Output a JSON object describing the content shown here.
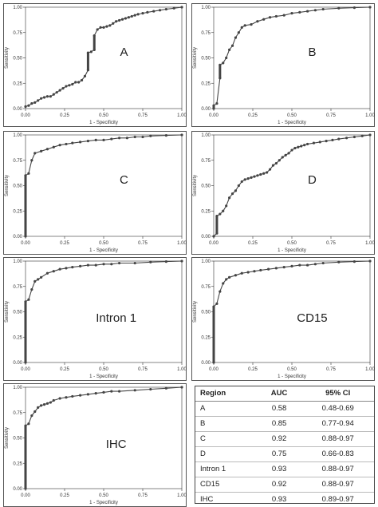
{
  "chart_data": [
    {
      "type": "line",
      "panel_label": "A",
      "xlabel": "1 - Specificity",
      "ylabel": "Sensitivity",
      "xlim": [
        0,
        1
      ],
      "ylim": [
        0,
        1
      ],
      "xticks": [
        "0.00",
        "0.25",
        "0.50",
        "0.75",
        "1.00"
      ],
      "yticks": [
        "0.00",
        "0.25",
        "0.50",
        "0.75",
        "1.00"
      ],
      "x": [
        0.0,
        0.02,
        0.04,
        0.06,
        0.08,
        0.1,
        0.12,
        0.14,
        0.16,
        0.18,
        0.2,
        0.22,
        0.24,
        0.26,
        0.28,
        0.3,
        0.32,
        0.34,
        0.36,
        0.38,
        0.4,
        0.4,
        0.42,
        0.44,
        0.44,
        0.46,
        0.48,
        0.5,
        0.52,
        0.54,
        0.56,
        0.58,
        0.6,
        0.62,
        0.64,
        0.66,
        0.68,
        0.7,
        0.72,
        0.75,
        0.78,
        0.82,
        0.86,
        0.9,
        0.95,
        1.0
      ],
      "y": [
        0.02,
        0.03,
        0.05,
        0.06,
        0.08,
        0.1,
        0.11,
        0.12,
        0.12,
        0.14,
        0.16,
        0.18,
        0.2,
        0.22,
        0.23,
        0.24,
        0.26,
        0.26,
        0.28,
        0.32,
        0.38,
        0.55,
        0.56,
        0.58,
        0.72,
        0.78,
        0.8,
        0.8,
        0.81,
        0.82,
        0.84,
        0.86,
        0.87,
        0.88,
        0.89,
        0.9,
        0.91,
        0.92,
        0.93,
        0.94,
        0.95,
        0.96,
        0.97,
        0.98,
        0.99,
        1.0
      ]
    },
    {
      "type": "line",
      "panel_label": "B",
      "xlabel": "1 - Specificity",
      "ylabel": "Sensitivity",
      "xlim": [
        0,
        1
      ],
      "ylim": [
        0,
        1
      ],
      "xticks": [
        "0.00",
        "0.25",
        "0.50",
        "0.75",
        "1.00"
      ],
      "yticks": [
        "0.00",
        "0.25",
        "0.50",
        "0.75",
        "1.00"
      ],
      "x": [
        0.0,
        0.0,
        0.02,
        0.04,
        0.04,
        0.06,
        0.08,
        0.1,
        0.12,
        0.14,
        0.16,
        0.18,
        0.2,
        0.24,
        0.28,
        0.32,
        0.36,
        0.4,
        0.45,
        0.5,
        0.55,
        0.6,
        0.65,
        0.7,
        0.8,
        0.9,
        1.0
      ],
      "y": [
        0.0,
        0.03,
        0.05,
        0.3,
        0.43,
        0.45,
        0.5,
        0.58,
        0.62,
        0.7,
        0.75,
        0.8,
        0.82,
        0.83,
        0.86,
        0.88,
        0.9,
        0.91,
        0.92,
        0.94,
        0.95,
        0.96,
        0.97,
        0.98,
        0.99,
        0.995,
        1.0
      ]
    },
    {
      "type": "line",
      "panel_label": "C",
      "xlabel": "1 - Specificity",
      "ylabel": "Sensitivity",
      "xlim": [
        0,
        1
      ],
      "ylim": [
        0,
        1
      ],
      "xticks": [
        "0.00",
        "0.25",
        "0.50",
        "0.75",
        "1.00"
      ],
      "yticks": [
        "0.00",
        "0.25",
        "0.50",
        "0.75",
        "1.00"
      ],
      "x": [
        0.0,
        0.0,
        0.02,
        0.04,
        0.06,
        0.1,
        0.14,
        0.18,
        0.22,
        0.26,
        0.3,
        0.35,
        0.4,
        0.45,
        0.5,
        0.55,
        0.6,
        0.65,
        0.7,
        0.75,
        0.8,
        0.9,
        1.0
      ],
      "y": [
        0.0,
        0.6,
        0.62,
        0.75,
        0.82,
        0.84,
        0.86,
        0.88,
        0.9,
        0.91,
        0.92,
        0.93,
        0.94,
        0.95,
        0.95,
        0.96,
        0.97,
        0.97,
        0.98,
        0.98,
        0.99,
        0.995,
        1.0
      ]
    },
    {
      "type": "line",
      "panel_label": "D",
      "xlabel": "1 - Specificity",
      "ylabel": "Sensitivity",
      "xlim": [
        0,
        1
      ],
      "ylim": [
        0,
        1
      ],
      "xticks": [
        "0.00",
        "0.25",
        "0.50",
        "0.75",
        "1.00"
      ],
      "yticks": [
        "0.00",
        "0.25",
        "0.50",
        "0.75",
        "1.00"
      ],
      "x": [
        0.0,
        0.02,
        0.02,
        0.04,
        0.06,
        0.08,
        0.1,
        0.12,
        0.14,
        0.16,
        0.18,
        0.2,
        0.22,
        0.24,
        0.26,
        0.28,
        0.3,
        0.32,
        0.34,
        0.36,
        0.38,
        0.4,
        0.42,
        0.44,
        0.46,
        0.48,
        0.5,
        0.52,
        0.54,
        0.56,
        0.58,
        0.6,
        0.64,
        0.68,
        0.72,
        0.76,
        0.8,
        0.85,
        0.9,
        0.95,
        1.0
      ],
      "y": [
        0.0,
        0.03,
        0.2,
        0.22,
        0.25,
        0.3,
        0.38,
        0.42,
        0.45,
        0.5,
        0.54,
        0.56,
        0.57,
        0.58,
        0.59,
        0.6,
        0.61,
        0.62,
        0.63,
        0.66,
        0.7,
        0.72,
        0.75,
        0.78,
        0.8,
        0.82,
        0.85,
        0.87,
        0.88,
        0.89,
        0.9,
        0.91,
        0.92,
        0.93,
        0.94,
        0.95,
        0.96,
        0.97,
        0.98,
        0.99,
        1.0
      ]
    },
    {
      "type": "line",
      "panel_label": "Intron 1",
      "xlabel": "1 - Specificity",
      "ylabel": "Sensitivity",
      "xlim": [
        0,
        1
      ],
      "ylim": [
        0,
        1
      ],
      "xticks": [
        "0.00",
        "0.25",
        "0.50",
        "0.75",
        "1.00"
      ],
      "yticks": [
        "0.00",
        "0.25",
        "0.50",
        "0.75",
        "1.00"
      ],
      "x": [
        0.0,
        0.0,
        0.02,
        0.04,
        0.06,
        0.08,
        0.1,
        0.14,
        0.18,
        0.22,
        0.26,
        0.3,
        0.35,
        0.4,
        0.45,
        0.5,
        0.55,
        0.6,
        0.7,
        0.8,
        0.9,
        1.0
      ],
      "y": [
        0.0,
        0.6,
        0.62,
        0.72,
        0.8,
        0.82,
        0.84,
        0.88,
        0.9,
        0.92,
        0.93,
        0.94,
        0.95,
        0.96,
        0.96,
        0.97,
        0.97,
        0.98,
        0.98,
        0.99,
        0.995,
        1.0
      ]
    },
    {
      "type": "line",
      "panel_label": "CD15",
      "xlabel": "1 - Specificity",
      "ylabel": "Sensitivity",
      "xlim": [
        0,
        1
      ],
      "ylim": [
        0,
        1
      ],
      "xticks": [
        "0.00",
        "0.25",
        "0.50",
        "0.75",
        "1.00"
      ],
      "yticks": [
        "0.00",
        "0.25",
        "0.50",
        "0.75",
        "1.00"
      ],
      "x": [
        0.0,
        0.0,
        0.02,
        0.04,
        0.06,
        0.08,
        0.1,
        0.14,
        0.18,
        0.22,
        0.26,
        0.3,
        0.35,
        0.4,
        0.45,
        0.5,
        0.55,
        0.6,
        0.65,
        0.7,
        0.8,
        0.9,
        1.0
      ],
      "y": [
        0.0,
        0.55,
        0.58,
        0.7,
        0.78,
        0.82,
        0.84,
        0.86,
        0.88,
        0.89,
        0.9,
        0.91,
        0.92,
        0.93,
        0.94,
        0.95,
        0.96,
        0.96,
        0.97,
        0.98,
        0.99,
        0.995,
        1.0
      ]
    },
    {
      "type": "line",
      "panel_label": "IHC",
      "xlabel": "1 - Specificity",
      "ylabel": "Sensitivity",
      "xlim": [
        0,
        1
      ],
      "ylim": [
        0,
        1
      ],
      "xticks": [
        "0.00",
        "0.25",
        "0.50",
        "0.75",
        "1.00"
      ],
      "yticks": [
        "0.00",
        "0.25",
        "0.50",
        "0.75",
        "1.00"
      ],
      "x": [
        0.0,
        0.0,
        0.02,
        0.04,
        0.06,
        0.08,
        0.1,
        0.12,
        0.14,
        0.16,
        0.18,
        0.22,
        0.26,
        0.3,
        0.35,
        0.4,
        0.45,
        0.5,
        0.55,
        0.6,
        0.7,
        0.8,
        0.9,
        1.0
      ],
      "y": [
        0.0,
        0.62,
        0.64,
        0.72,
        0.76,
        0.8,
        0.82,
        0.83,
        0.84,
        0.85,
        0.87,
        0.89,
        0.9,
        0.91,
        0.92,
        0.93,
        0.94,
        0.95,
        0.96,
        0.96,
        0.97,
        0.98,
        0.99,
        1.0
      ]
    },
    {
      "type": "table",
      "columns": [
        "Region",
        "AUC",
        "95% CI"
      ],
      "rows": [
        [
          "A",
          "0.58",
          "0.48-0.69"
        ],
        [
          "B",
          "0.85",
          "0.77-0.94"
        ],
        [
          "C",
          "0.92",
          "0.88-0.97"
        ],
        [
          "D",
          "0.75",
          "0.66-0.83"
        ],
        [
          "Intron 1",
          "0.93",
          "0.88-0.97"
        ],
        [
          "CD15",
          "0.92",
          "0.88-0.97"
        ],
        [
          "IHC",
          "0.93",
          "0.89-0.97"
        ]
      ]
    }
  ],
  "colors": {
    "curve": "#444444",
    "axis": "#333333",
    "panel_border": "#555555"
  }
}
